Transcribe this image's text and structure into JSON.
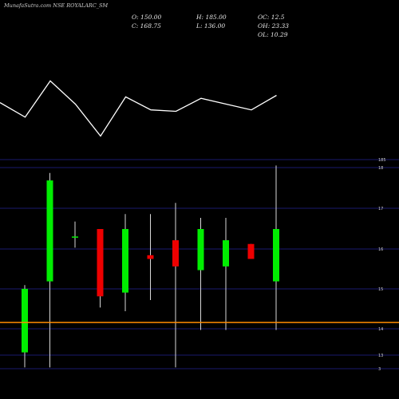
{
  "header": {
    "title": "MunafaSutra.com NSE ROYALARC_SM",
    "open": "O: 150.00",
    "high": "H: 185.00",
    "oc": "OC: 12.5",
    "close": "C: 168.75",
    "low": "L: 136.00",
    "oh": "OH: 23.33",
    "ol": "OL: 10.29"
  },
  "colors": {
    "background": "#000000",
    "up": "#00ee00",
    "down": "#ee0000",
    "wick": "#d8d8d8",
    "line": "#ffffff",
    "grid": "#1a1a6e",
    "price_line": "#ff8c00"
  },
  "chart_data": {
    "type": "candlestick",
    "y_ticks": [
      "185",
      "18",
      "17",
      "16",
      "15",
      "14",
      "13",
      "3"
    ],
    "candles": [
      {
        "open": 135,
        "close": 152,
        "high": 153,
        "low": 131,
        "color": "green"
      },
      {
        "open": 154,
        "close": 181,
        "high": 183,
        "low": 131,
        "color": "green"
      },
      {
        "open": 166,
        "close": 166,
        "high": 170,
        "low": 163,
        "color": "green"
      },
      {
        "open": 168,
        "close": 150,
        "high": 168,
        "low": 147,
        "color": "red"
      },
      {
        "open": 151,
        "close": 168,
        "high": 172,
        "low": 146,
        "color": "green"
      },
      {
        "open": 161,
        "close": 160,
        "high": 172,
        "low": 149,
        "color": "red"
      },
      {
        "open": 165,
        "close": 158,
        "high": 175,
        "low": 131,
        "color": "red"
      },
      {
        "open": 157,
        "close": 168,
        "high": 171,
        "low": 141,
        "color": "green"
      },
      {
        "open": 158,
        "close": 165,
        "high": 171,
        "low": 141,
        "color": "green"
      },
      {
        "open": 164,
        "close": 160,
        "high": 164,
        "low": 160,
        "color": "red"
      },
      {
        "open": 154,
        "close": 168,
        "high": 185,
        "low": 141,
        "color": "green"
      }
    ],
    "reference_price": 143,
    "indicator": [
      51,
      41,
      66,
      50,
      28,
      55,
      46,
      45,
      54,
      50,
      46,
      56
    ]
  }
}
